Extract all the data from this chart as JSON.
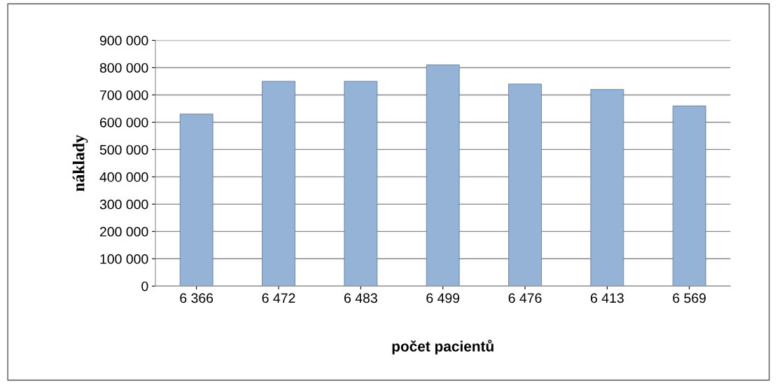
{
  "chart_data": {
    "type": "bar",
    "xlabel": "počet pacientů",
    "ylabel": "náklady",
    "categories": [
      "6 366",
      "6 472",
      "6 483",
      "6 499",
      "6 476",
      "6 413",
      "6 569"
    ],
    "values": [
      630000,
      750000,
      750000,
      810000,
      740000,
      720000,
      660000
    ],
    "color": "#95b3d7",
    "ylim": [
      0,
      900000
    ],
    "yticks": [
      {
        "value": 0,
        "label": "0"
      },
      {
        "value": 100000,
        "label": "100 000"
      },
      {
        "value": 200000,
        "label": "200 000"
      },
      {
        "value": 300000,
        "label": "300 000"
      },
      {
        "value": 400000,
        "label": "400 000"
      },
      {
        "value": 500000,
        "label": "500 000"
      },
      {
        "value": 600000,
        "label": "600 000"
      },
      {
        "value": 700000,
        "label": "700 000"
      },
      {
        "value": 800000,
        "label": "800 000"
      },
      {
        "value": 900000,
        "label": "900 000"
      }
    ],
    "grid": "y"
  }
}
